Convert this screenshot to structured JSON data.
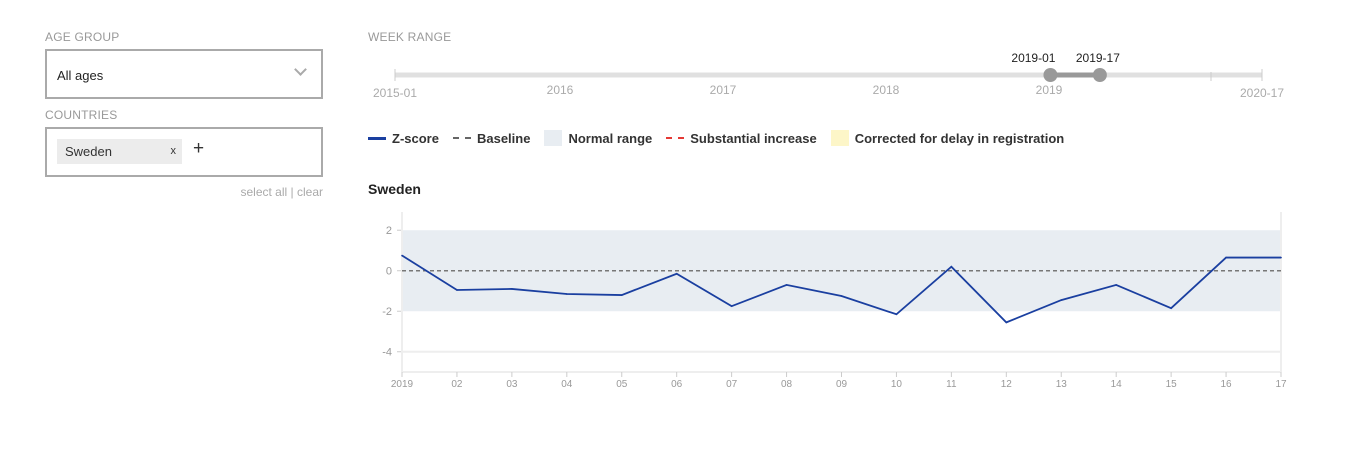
{
  "filters": {
    "age_group_label": "AGE GROUP",
    "age_group_value": "All ages",
    "countries_label": "COUNTRIES",
    "selected_countries": [
      "Sweden"
    ],
    "remove_label": "x",
    "add_label": "+",
    "select_all": "select all",
    "separator": "|",
    "clear": "clear"
  },
  "week_range": {
    "label": "WEEK RANGE",
    "min_label": "2015-01",
    "max_label": "2020-17",
    "year_ticks": [
      "2016",
      "2017",
      "2018",
      "2019"
    ],
    "selected_start": "2019-01",
    "selected_end": "2019-17",
    "start_fraction": 0.756,
    "end_fraction": 0.813
  },
  "legend": [
    {
      "label": "Z-score",
      "color": "#1a3fa0"
    },
    {
      "label": "Baseline",
      "color": "#666666"
    },
    {
      "label": "Normal range",
      "color": "#e8edf2"
    },
    {
      "label": "Substantial increase",
      "color": "#e53935"
    },
    {
      "label": "Corrected for delay in registration",
      "color": "#fdf6c8"
    }
  ],
  "chart_data": {
    "type": "line",
    "title": "Sweden",
    "xlabel": "",
    "ylabel": "",
    "categories": [
      "2019",
      "02",
      "03",
      "04",
      "05",
      "06",
      "07",
      "08",
      "09",
      "10",
      "11",
      "12",
      "13",
      "14",
      "15",
      "16",
      "17"
    ],
    "series": [
      {
        "name": "Z-score",
        "values": [
          0.75,
          -0.95,
          -0.9,
          -1.15,
          -1.2,
          -0.15,
          -1.75,
          -0.7,
          -1.25,
          -2.15,
          0.2,
          -2.55,
          -1.45,
          -0.7,
          -1.85,
          0.65,
          0.65
        ]
      }
    ],
    "baseline": 0,
    "normal_range": [
      -2,
      2
    ],
    "yticks": [
      2,
      0,
      -2,
      -4
    ],
    "ylim": [
      -5,
      2.9
    ]
  }
}
